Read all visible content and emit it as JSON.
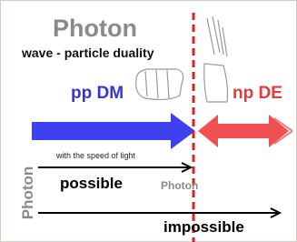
{
  "title": "Photon",
  "subtitle": "wave - particle duality",
  "left_label": "pp DM",
  "right_label": "np DE",
  "caption": "with the speed of light",
  "possible": "possible",
  "marker_label": "Photon",
  "side_label": "Photon",
  "impossible": "impossible"
}
